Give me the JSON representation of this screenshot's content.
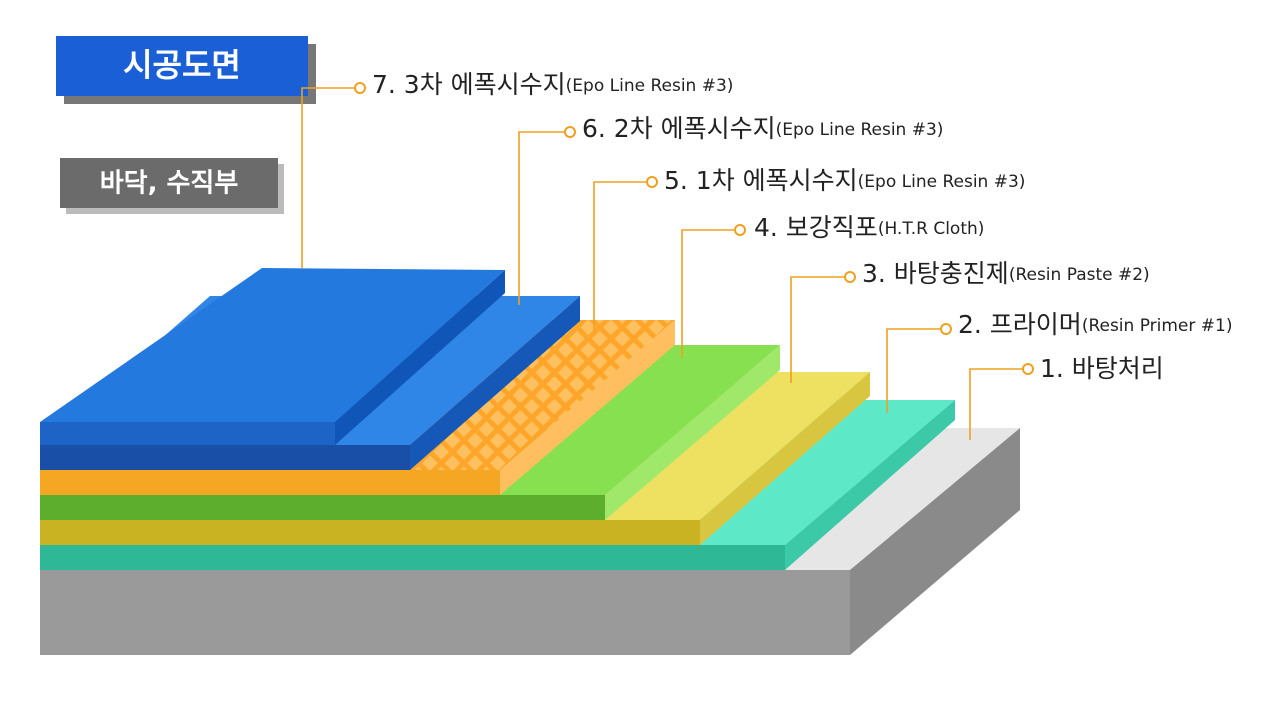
{
  "header": {
    "title": "시공도면",
    "subtitle": "바닥, 수직부"
  },
  "layers": [
    {
      "label": "7. 3차 에폭시수지",
      "note": "(Epo Line Resin #3)"
    },
    {
      "label": "6. 2차 에폭시수지",
      "note": "(Epo Line Resin #3)"
    },
    {
      "label": "5. 1차 에폭시수지",
      "note": "(Epo Line Resin #3)"
    },
    {
      "label": "4. 보강직포",
      "note": "(H.T.R Cloth)"
    },
    {
      "label": "3. 바탕충진제",
      "note": "(Resin Paste #2)"
    },
    {
      "label": "2. 프라이머",
      "note": "(Resin Primer #1)"
    },
    {
      "label": "1. 바탕처리"
    }
  ]
}
